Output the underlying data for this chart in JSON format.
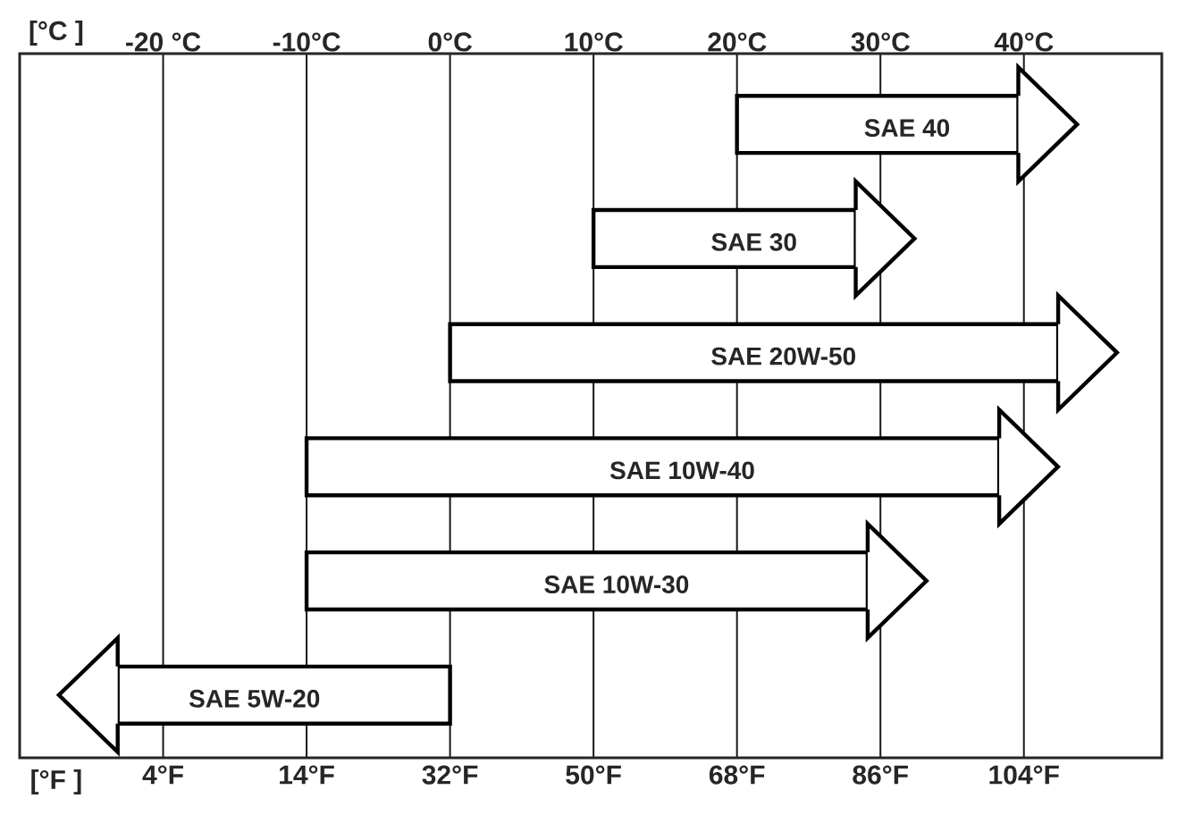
{
  "chart_data": {
    "type": "bar",
    "orientation": "horizontal",
    "categories": [
      "SAE 40",
      "SAE 30",
      "SAE 20W-50",
      "SAE 10W-40",
      "SAE 10W-30",
      "SAE 5W-20"
    ],
    "base": [
      68,
      50,
      32,
      14,
      14,
      32
    ],
    "values": [
      35.3,
      32.9,
      76.3,
      86.9,
      70.4,
      -41.7
    ],
    "color": "#ffffff",
    "xlim": [
      -22,
      121.3
    ],
    "xticks": [
      {
        "value": -4,
        "label": "4°F"
      },
      {
        "value": 14,
        "label": "14°F"
      },
      {
        "value": 32,
        "label": "32°F"
      },
      {
        "value": 50,
        "label": "50°F"
      },
      {
        "value": 68,
        "label": "68°F"
      },
      {
        "value": 86,
        "label": "86°F"
      },
      {
        "value": 104,
        "label": "104°F"
      }
    ],
    "x2lim": [
      -30,
      49.6
    ],
    "x2ticks": [
      {
        "value": -20,
        "label": "-20 °C"
      },
      {
        "value": -10,
        "label": "-10°C"
      },
      {
        "value": 0,
        "label": "0°C"
      },
      {
        "value": 10,
        "label": "10°C"
      },
      {
        "value": 20,
        "label": "20°C"
      },
      {
        "value": 30,
        "label": "30°C"
      },
      {
        "value": 40,
        "label": "40°C"
      }
    ],
    "xlabel": "[°F ]",
    "x2label": "[°C ]",
    "grid": "x",
    "tick_labels": "x"
  }
}
